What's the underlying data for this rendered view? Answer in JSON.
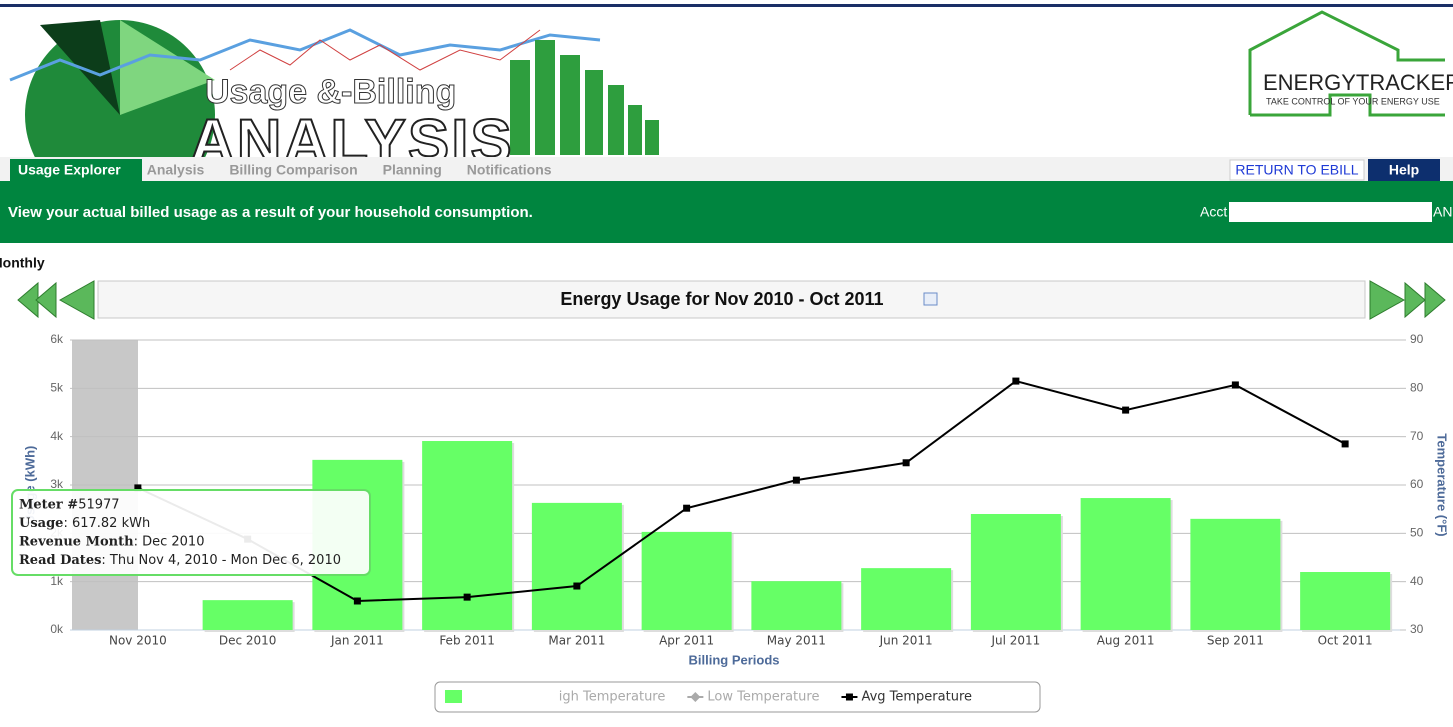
{
  "header": {
    "logo_title": "Usage &-Billing",
    "logo_big": "ANALYSIS",
    "brand": "ENERGYTRACKER",
    "tagline": "TAKE CONTROL OF YOUR ENERGY USE"
  },
  "nav": {
    "tabs": [
      "Usage Explorer",
      "Analysis",
      "Billing Comparison",
      "Planning",
      "Notifications"
    ],
    "return_link": "RETURN TO EBILL",
    "help": "Help"
  },
  "banner": {
    "message": "View your actual billed usage as a result of your household consumption.",
    "account": "Acct",
    "account_end": "AN"
  },
  "period_label": "Monthly",
  "tooltip": {
    "rows": [
      {
        "label": "Meter #",
        "value": " 51977"
      },
      {
        "label": "Usage",
        "value": ": 617.82 kWh"
      },
      {
        "label": "Revenue Month",
        "value": ": Dec 2010"
      },
      {
        "label": "Read Dates",
        "value": ": Thu Nov 4, 2010 - Mon Dec 6, 2010"
      }
    ]
  },
  "chart_data": {
    "type": "bar",
    "title": "Energy Usage for Nov 2010 - Oct 2011",
    "x_label": "Billing Periods",
    "y_label": "Usage (kWh)",
    "y2_label": "Temperature (°F)",
    "categories": [
      "Nov 2010",
      "Dec 2010",
      "Jan 2011",
      "Feb 2011",
      "Mar 2011",
      "Apr 2011",
      "May 2011",
      "Jun 2011",
      "Jul 2011",
      "Aug 2011",
      "Sep 2011",
      "Oct 2011"
    ],
    "series": [
      {
        "type": "bar",
        "color": "#66ff66",
        "values": [
          null,
          617.82,
          3520,
          3910,
          2630,
          2030,
          1010,
          1280,
          2400,
          2730,
          2300,
          1200
        ]
      },
      {
        "name": "High Temperature",
        "type": "line",
        "axis": "y2",
        "color": "#aaaaaa",
        "values": [
          null,
          null,
          null,
          null,
          null,
          null,
          null,
          null,
          null,
          null,
          null,
          null
        ]
      },
      {
        "name": "Low Temperature",
        "type": "line",
        "axis": "y2",
        "color": "#aaaaaa",
        "values": [
          null,
          null,
          null,
          null,
          null,
          null,
          null,
          null,
          null,
          null,
          null,
          null
        ]
      },
      {
        "name": "Avg Temperature",
        "type": "line",
        "axis": "y2",
        "color": "#000000",
        "values": [
          59.4,
          48.8,
          36.0,
          36.8,
          39.1,
          55.2,
          61.0,
          64.6,
          81.5,
          75.5,
          80.7,
          68.5
        ]
      }
    ],
    "ylim": [
      0,
      6000
    ],
    "yticks": [
      {
        "value": 0,
        "label": "0k"
      },
      {
        "value": 1000,
        "label": "1k"
      },
      {
        "value": 2000,
        "label": "2k"
      },
      {
        "value": 3000,
        "label": "3k"
      },
      {
        "value": 4000,
        "label": "4k"
      },
      {
        "value": 5000,
        "label": "5k"
      },
      {
        "value": 6000,
        "label": "6k"
      }
    ],
    "y2lim": [
      30,
      90
    ],
    "y2ticks": [
      30,
      40,
      50,
      60,
      70,
      80,
      90
    ],
    "grid": true,
    "legend": "bottom"
  }
}
